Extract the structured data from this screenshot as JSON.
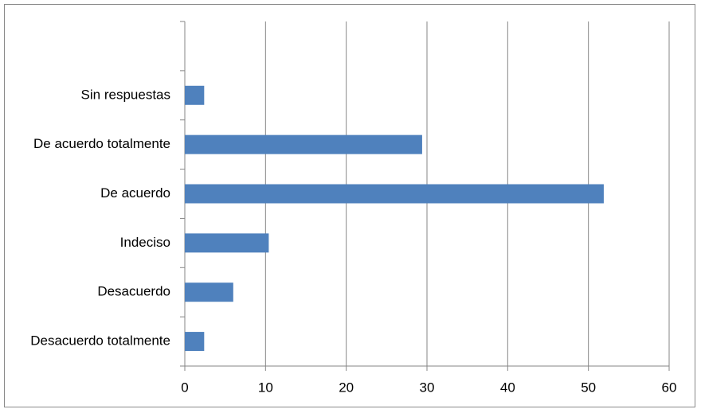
{
  "chart_data": {
    "type": "hbar",
    "categories": [
      "Desacuerdo totalmente",
      "Desacuerdo",
      "Indeciso",
      "De acuerdo",
      "De acuerdo totalmente",
      "Sin respuestas",
      null
    ],
    "values": [
      2.4,
      6,
      10.4,
      51.9,
      29.4,
      2.4,
      null
    ],
    "color": "#4f81bd",
    "xlim": [
      0,
      60
    ],
    "xticks": [
      0,
      10,
      20,
      30,
      40,
      50,
      60
    ],
    "grid": true
  }
}
